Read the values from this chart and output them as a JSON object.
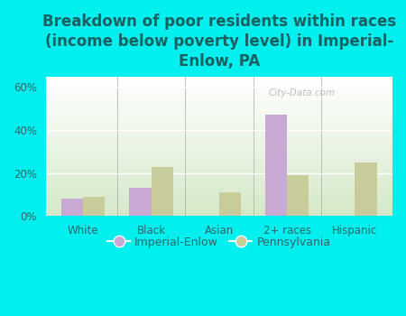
{
  "title": "Breakdown of poor residents within races\n(income below poverty level) in Imperial-\nEnlow, PA",
  "categories": [
    "White",
    "Black",
    "Asian",
    "2+ races",
    "Hispanic"
  ],
  "imperial_enlow": [
    8,
    13,
    0,
    47,
    0
  ],
  "pennsylvania": [
    9,
    23,
    11,
    19,
    25
  ],
  "color_imperial": "#c9a8d4",
  "color_pennsylvania": "#c8cc9a",
  "background_outer": "#00efef",
  "background_plot_top": "#ffffff",
  "background_plot_bottom": "#d4e8c8",
  "ylim": [
    0,
    65
  ],
  "yticks": [
    0,
    20,
    40,
    60
  ],
  "ytick_labels": [
    "0%",
    "20%",
    "40%",
    "60%"
  ],
  "bar_width": 0.32,
  "legend_labels": [
    "Imperial-Enlow",
    "Pennsylvania"
  ],
  "title_fontsize": 12,
  "title_color": "#1a6060",
  "axis_label_color": "#336666",
  "watermark": "City-Data.com"
}
